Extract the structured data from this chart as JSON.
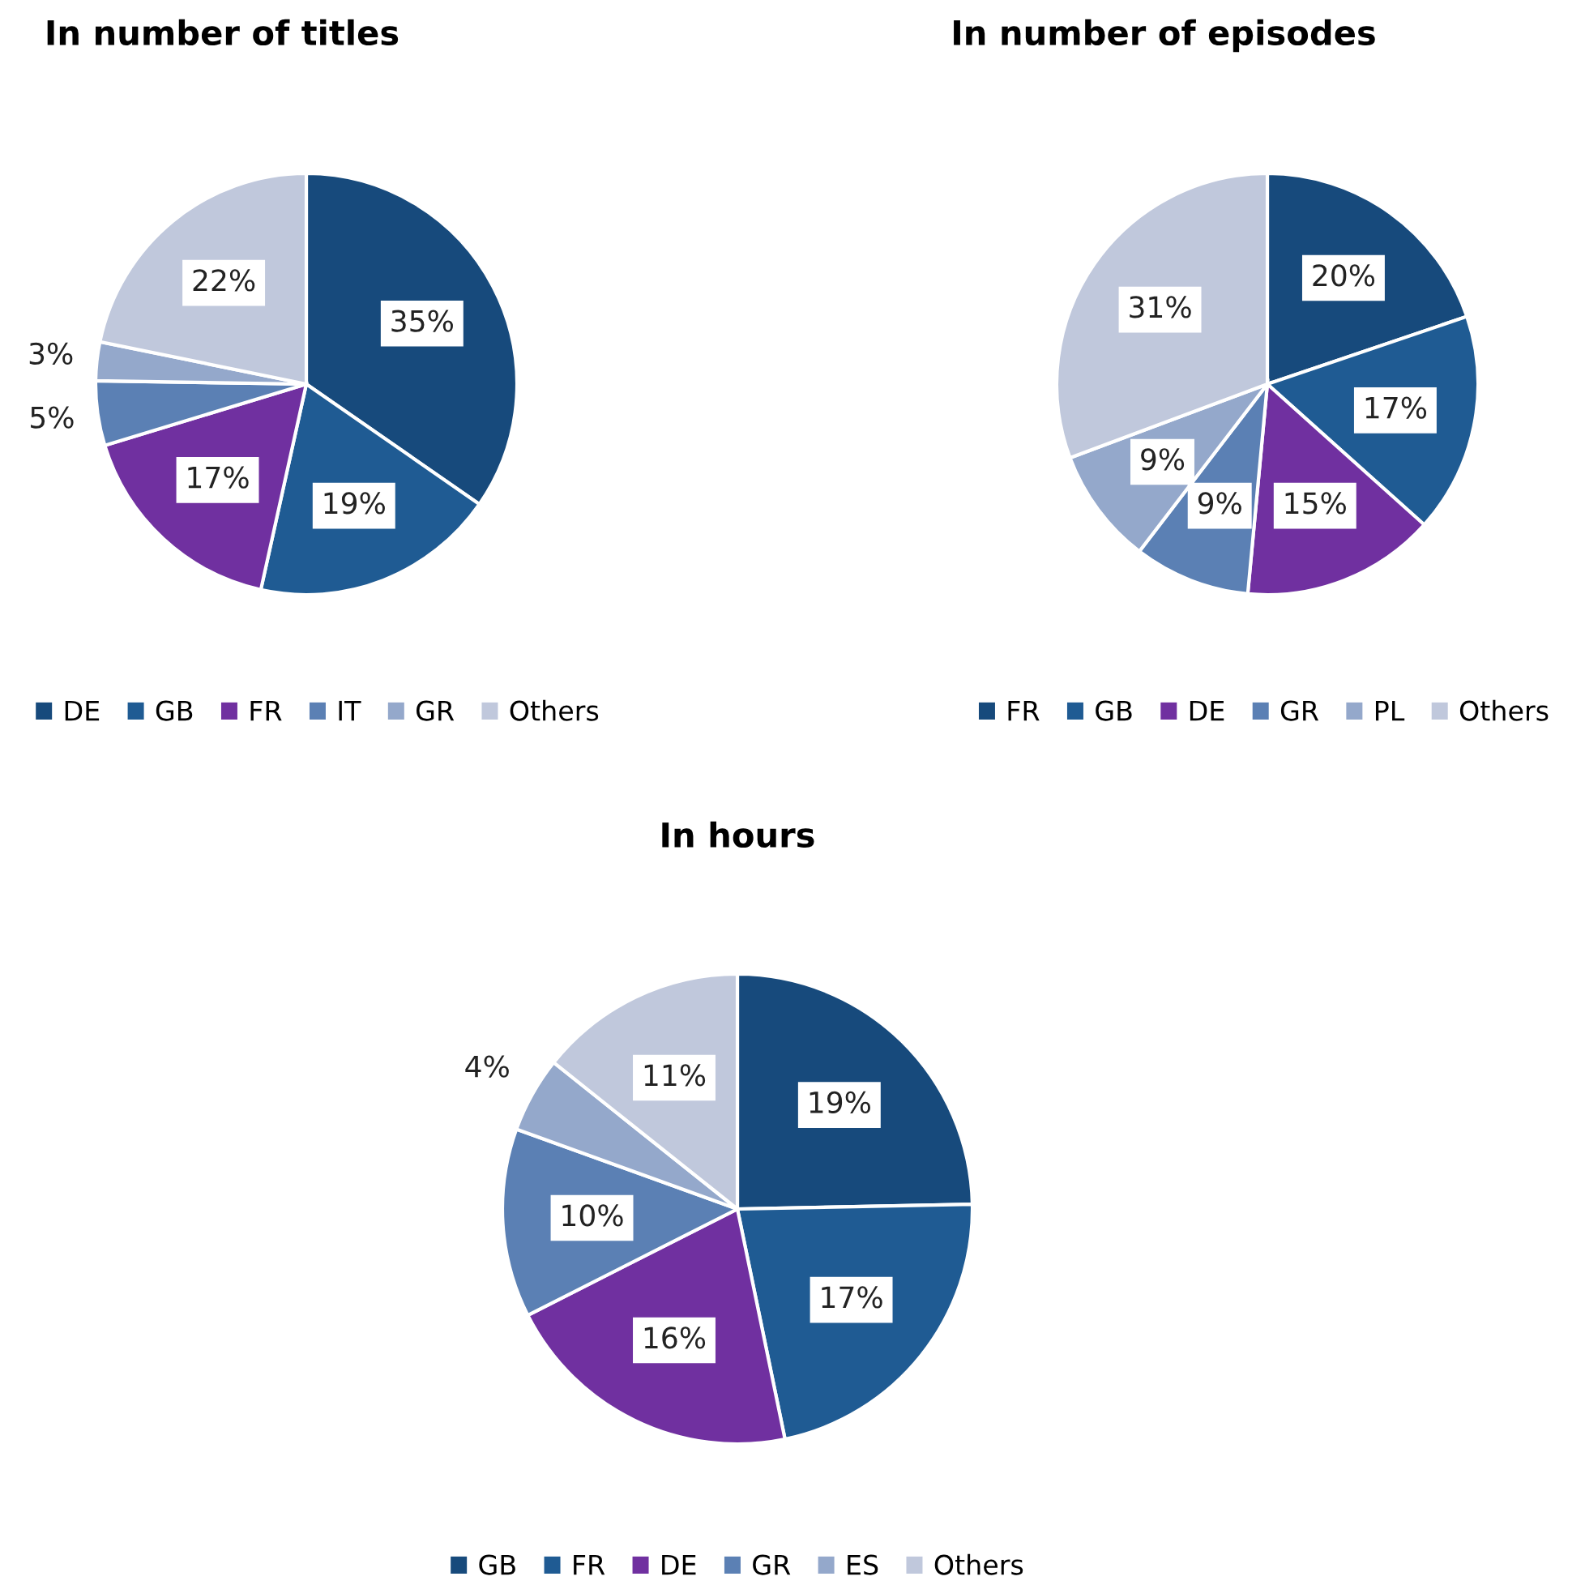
{
  "chart_data": [
    {
      "type": "pie",
      "title": "In number of titles",
      "categories": [
        "DE",
        "GB",
        "FR",
        "IT",
        "GR",
        "Others"
      ],
      "values": [
        35,
        19,
        17,
        5,
        3,
        22
      ],
      "value_labels": [
        "35%",
        "19%",
        "17%",
        "5%",
        "3%",
        "22%"
      ],
      "colors": [
        "#174a7c",
        "#1f5b93",
        "#7030a0",
        "#5b80b4",
        "#94a8cb",
        "#c0c8dc"
      ],
      "legend": "bottom"
    },
    {
      "type": "pie",
      "title": "In number of episodes",
      "categories": [
        "FR",
        "GB",
        "DE",
        "GR",
        "PL",
        "Others"
      ],
      "values": [
        20,
        17,
        15,
        9,
        9,
        31
      ],
      "value_labels": [
        "20%",
        "17%",
        "15%",
        "9%",
        "9%",
        "31%"
      ],
      "colors": [
        "#174a7c",
        "#1f5b93",
        "#7030a0",
        "#5b80b4",
        "#94a8cb",
        "#c0c8dc"
      ],
      "legend": "bottom"
    },
    {
      "type": "pie",
      "title": "In hours",
      "categories": [
        "GB",
        "FR",
        "DE",
        "GR",
        "ES",
        "Others"
      ],
      "values": [
        19,
        17,
        16,
        10,
        4,
        11
      ],
      "value_labels": [
        "19%",
        "17%",
        "16%",
        "10%",
        "4%",
        "11%"
      ],
      "colors": [
        "#174a7c",
        "#1f5b93",
        "#7030a0",
        "#5b80b4",
        "#94a8cb",
        "#c0c8dc"
      ],
      "legend": "bottom"
    }
  ]
}
